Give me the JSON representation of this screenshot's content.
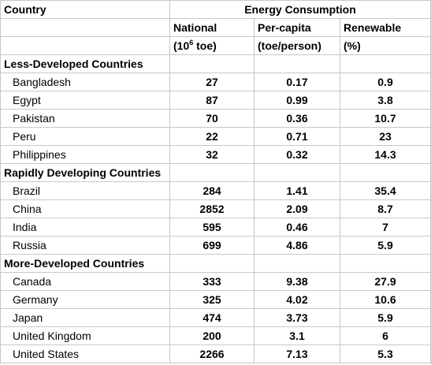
{
  "header": {
    "country_label": "Country",
    "group_label": "Energy Consumption",
    "columns": [
      {
        "line1": "National",
        "line2_prefix": "(10",
        "line2_sup": "6",
        "line2_suffix": " toe)"
      },
      {
        "line1": "Per-capita",
        "line2_prefix": "(toe/person)",
        "line2_sup": "",
        "line2_suffix": ""
      },
      {
        "line1": "Renewable",
        "line2_prefix": "(%)",
        "line2_sup": "",
        "line2_suffix": ""
      }
    ]
  },
  "groups": [
    {
      "title": "Less-Developed Countries",
      "rows": [
        {
          "country": "Bangladesh",
          "national": "27",
          "per_capita": "0.17",
          "renewable": "0.9"
        },
        {
          "country": "Egypt",
          "national": "87",
          "per_capita": "0.99",
          "renewable": "3.8"
        },
        {
          "country": "Pakistan",
          "national": "70",
          "per_capita": "0.36",
          "renewable": "10.7"
        },
        {
          "country": "Peru",
          "national": "22",
          "per_capita": "0.71",
          "renewable": "23"
        },
        {
          "country": "Philippines",
          "national": "32",
          "per_capita": "0.32",
          "renewable": "14.3"
        }
      ]
    },
    {
      "title": "Rapidly Developing Countries",
      "rows": [
        {
          "country": "Brazil",
          "national": "284",
          "per_capita": "1.41",
          "renewable": "35.4"
        },
        {
          "country": "China",
          "national": "2852",
          "per_capita": "2.09",
          "renewable": "8.7"
        },
        {
          "country": "India",
          "national": "595",
          "per_capita": "0.46",
          "renewable": "7"
        },
        {
          "country": "Russia",
          "national": "699",
          "per_capita": "4.86",
          "renewable": "5.9"
        }
      ]
    },
    {
      "title": "More-Developed Countries",
      "rows": [
        {
          "country": "Canada",
          "national": "333",
          "per_capita": "9.38",
          "renewable": "27.9"
        },
        {
          "country": "Germany",
          "national": "325",
          "per_capita": "4.02",
          "renewable": "10.6"
        },
        {
          "country": "Japan",
          "national": "474",
          "per_capita": "3.73",
          "renewable": "5.9"
        },
        {
          "country": "United Kingdom",
          "national": "200",
          "per_capita": "3.1",
          "renewable": "6"
        },
        {
          "country": "United States",
          "national": "2266",
          "per_capita": "7.13",
          "renewable": "5.3"
        }
      ]
    }
  ]
}
